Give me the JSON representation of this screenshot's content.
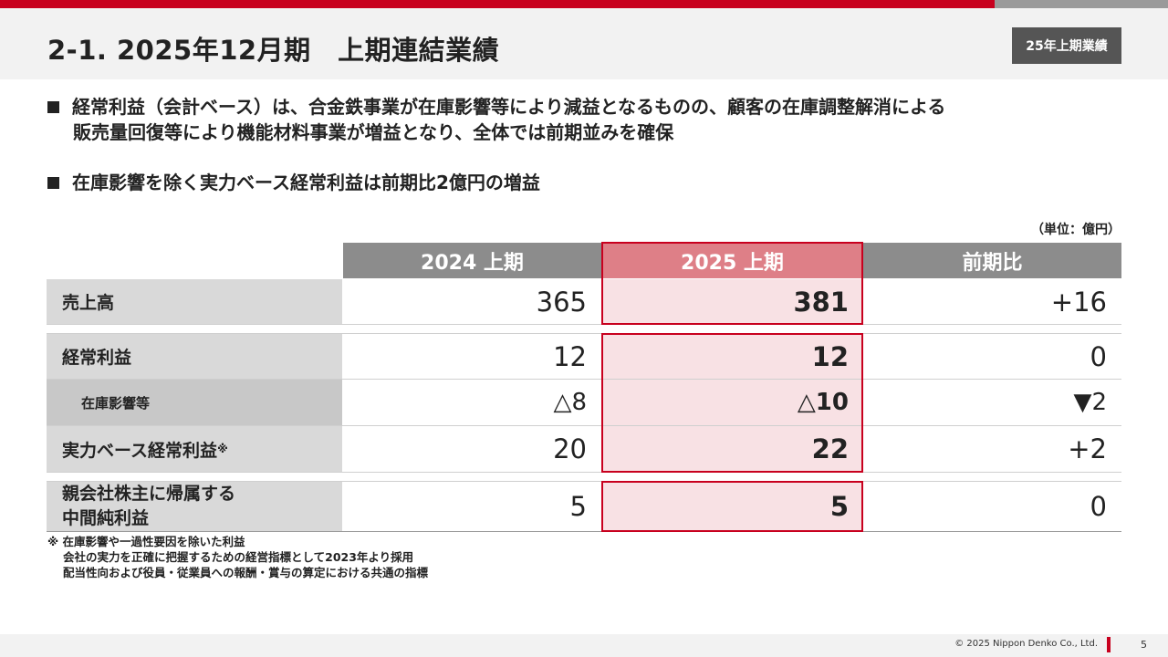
{
  "header": {
    "title": "2-1. 2025年12月期　上期連結業績",
    "badge": "25年上期業績"
  },
  "bullets": {
    "b1_line1": "経常利益（会計ベース）は、合金鉄事業が在庫影響等により減益となるものの、顧客の在庫調整解消による",
    "b1_line2": "販売量回復等により機能材料事業が増益となり、全体では前期並みを確保",
    "b2": "在庫影響を除く実力ベース経常利益は前期比2億円の増益"
  },
  "table": {
    "unit": "（単位：億円）",
    "headers": [
      "2024 上期",
      "2025 上期",
      "前期比"
    ],
    "rows": [
      {
        "label": "売上高",
        "v2024": "365",
        "v2025": "381",
        "diff": "+16"
      },
      {
        "label": "経常利益",
        "v2024": "12",
        "v2025": "12",
        "diff": "0"
      },
      {
        "label": "在庫影響等",
        "v2024": "△8",
        "v2025": "△10",
        "diff": "▼2"
      },
      {
        "label": "実力ベース経常利益",
        "label_mark": "※",
        "v2024": "20",
        "v2025": "22",
        "diff": "+2"
      },
      {
        "label_line1": "親会社株主に帰属する",
        "label_line2": "中間純利益",
        "v2024": "5",
        "v2025": "5",
        "diff": "0"
      }
    ]
  },
  "footnote": {
    "line1": "※ 在庫影響や一過性要因を除いた利益",
    "line2": "会社の実力を正確に把握するための経営指標として2023年より採用",
    "line3": "配当性向および役員・従業員への報酬・賞与の算定における共通の指標"
  },
  "footer": {
    "copyright": "© 2025 Nippon Denko Co., Ltd.",
    "page": "5"
  },
  "colors": {
    "brand_red": "#c8001e",
    "highlight_fill": "#f8e1e4",
    "highlight_header": "#de7f87"
  }
}
